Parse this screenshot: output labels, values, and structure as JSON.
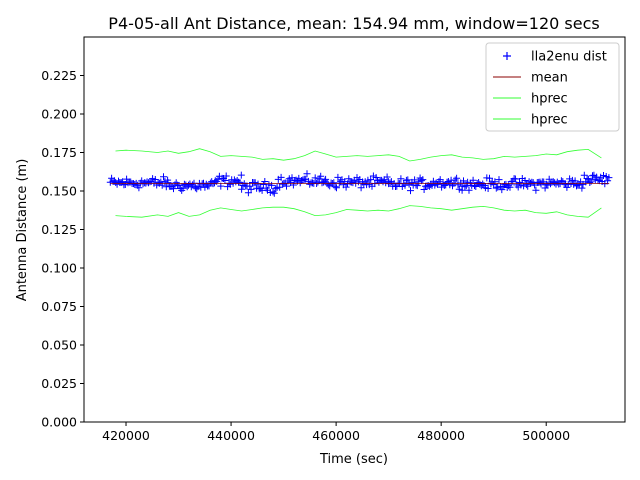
{
  "chart_data": {
    "type": "scatter",
    "title": "P4-05-all Ant Distance, mean: 154.94 mm, window=120 secs",
    "xlabel": "Time (sec)",
    "ylabel": "Antenna Distance (m)",
    "xlim": [
      412000,
      515000
    ],
    "ylim": [
      0.0,
      0.25
    ],
    "xticks": [
      420000,
      440000,
      460000,
      480000,
      500000
    ],
    "xtick_labels": [
      "420000",
      "440000",
      "460000",
      "480000",
      "500000"
    ],
    "yticks": [
      0.0,
      0.025,
      0.05,
      0.075,
      0.1,
      0.125,
      0.15,
      0.175,
      0.2,
      0.225
    ],
    "ytick_labels": [
      "0.000",
      "0.025",
      "0.050",
      "0.075",
      "0.100",
      "0.125",
      "0.150",
      "0.175",
      "0.200",
      "0.225"
    ],
    "grid": false,
    "legend_position": "top-right",
    "legend": [
      {
        "label": "lla2enu dist",
        "marker": "+",
        "color": "#0000ff"
      },
      {
        "label": "mean",
        "marker": "line",
        "color": "#8b0000"
      },
      {
        "label": "hprec",
        "marker": "line",
        "color": "#33ff33"
      },
      {
        "label": "hprec",
        "marker": "line",
        "color": "#33ff33"
      }
    ],
    "series": [
      {
        "name": "lla2enu dist",
        "style": "plus",
        "color": "#0000ff",
        "x_range": [
          417000,
          512000
        ],
        "center": 0.1549,
        "spread": 0.0025,
        "segments": [
          {
            "x": [
              417000,
              428000
            ],
            "y": 0.1553
          },
          {
            "x": [
              428000,
              437000
            ],
            "y": 0.1535
          },
          {
            "x": [
              437000,
              442000
            ],
            "y": 0.1565
          },
          {
            "x": [
              442000,
              449000
            ],
            "y": 0.1525
          },
          {
            "x": [
              449000,
              458000
            ],
            "y": 0.1565
          },
          {
            "x": [
              458000,
              470000
            ],
            "y": 0.1555
          },
          {
            "x": [
              470000,
              478000
            ],
            "y": 0.1545
          },
          {
            "x": [
              478000,
              484000
            ],
            "y": 0.1555
          },
          {
            "x": [
              484000,
              499000
            ],
            "y": 0.1545
          },
          {
            "x": [
              499000,
              507000
            ],
            "y": 0.155
          },
          {
            "x": [
              507000,
              512000
            ],
            "y": 0.1575
          }
        ]
      },
      {
        "name": "mean",
        "style": "line",
        "color": "#8b0000",
        "x": [
          417000,
          512000
        ],
        "y": [
          0.15494,
          0.15494
        ]
      },
      {
        "name": "hprec",
        "style": "line",
        "color": "#33ff33",
        "x": [
          418000,
          420000,
          423000,
          426000,
          428000,
          430000,
          432000,
          434000,
          436000,
          438000,
          440000,
          442000,
          444000,
          446000,
          448000,
          450000,
          452000,
          454000,
          456000,
          458000,
          460000,
          462000,
          464000,
          466000,
          468000,
          470000,
          472000,
          474000,
          476000,
          478000,
          480000,
          482000,
          484000,
          486000,
          488000,
          490000,
          492000,
          494000,
          496000,
          498000,
          500000,
          502000,
          504000,
          506000,
          508000,
          510500
        ],
        "y": [
          0.176,
          0.1765,
          0.176,
          0.175,
          0.176,
          0.1745,
          0.1755,
          0.1775,
          0.1755,
          0.1725,
          0.173,
          0.1725,
          0.172,
          0.1705,
          0.171,
          0.17,
          0.171,
          0.173,
          0.176,
          0.174,
          0.172,
          0.1725,
          0.173,
          0.1725,
          0.173,
          0.1735,
          0.1725,
          0.1695,
          0.1705,
          0.172,
          0.173,
          0.1735,
          0.172,
          0.1715,
          0.1705,
          0.171,
          0.1725,
          0.172,
          0.1725,
          0.173,
          0.174,
          0.1735,
          0.1755,
          0.1765,
          0.177,
          0.1715
        ]
      },
      {
        "name": "hprec",
        "style": "line",
        "color": "#33ff33",
        "x": [
          418000,
          420000,
          423000,
          426000,
          428000,
          430000,
          432000,
          434000,
          436000,
          438000,
          440000,
          442000,
          444000,
          446000,
          448000,
          450000,
          452000,
          454000,
          456000,
          458000,
          460000,
          462000,
          464000,
          466000,
          468000,
          470000,
          472000,
          474000,
          476000,
          478000,
          480000,
          482000,
          484000,
          486000,
          488000,
          490000,
          492000,
          494000,
          496000,
          498000,
          500000,
          502000,
          504000,
          506000,
          508000,
          510500
        ],
        "y": [
          0.134,
          0.1335,
          0.133,
          0.1345,
          0.1335,
          0.136,
          0.1335,
          0.1345,
          0.1375,
          0.139,
          0.138,
          0.137,
          0.138,
          0.139,
          0.1395,
          0.1395,
          0.1385,
          0.1365,
          0.134,
          0.1345,
          0.136,
          0.138,
          0.1375,
          0.137,
          0.1375,
          0.137,
          0.1385,
          0.1405,
          0.14,
          0.139,
          0.1385,
          0.1375,
          0.1385,
          0.1395,
          0.14,
          0.139,
          0.1375,
          0.137,
          0.1375,
          0.136,
          0.1355,
          0.1365,
          0.1345,
          0.1335,
          0.133,
          0.139
        ]
      }
    ]
  }
}
